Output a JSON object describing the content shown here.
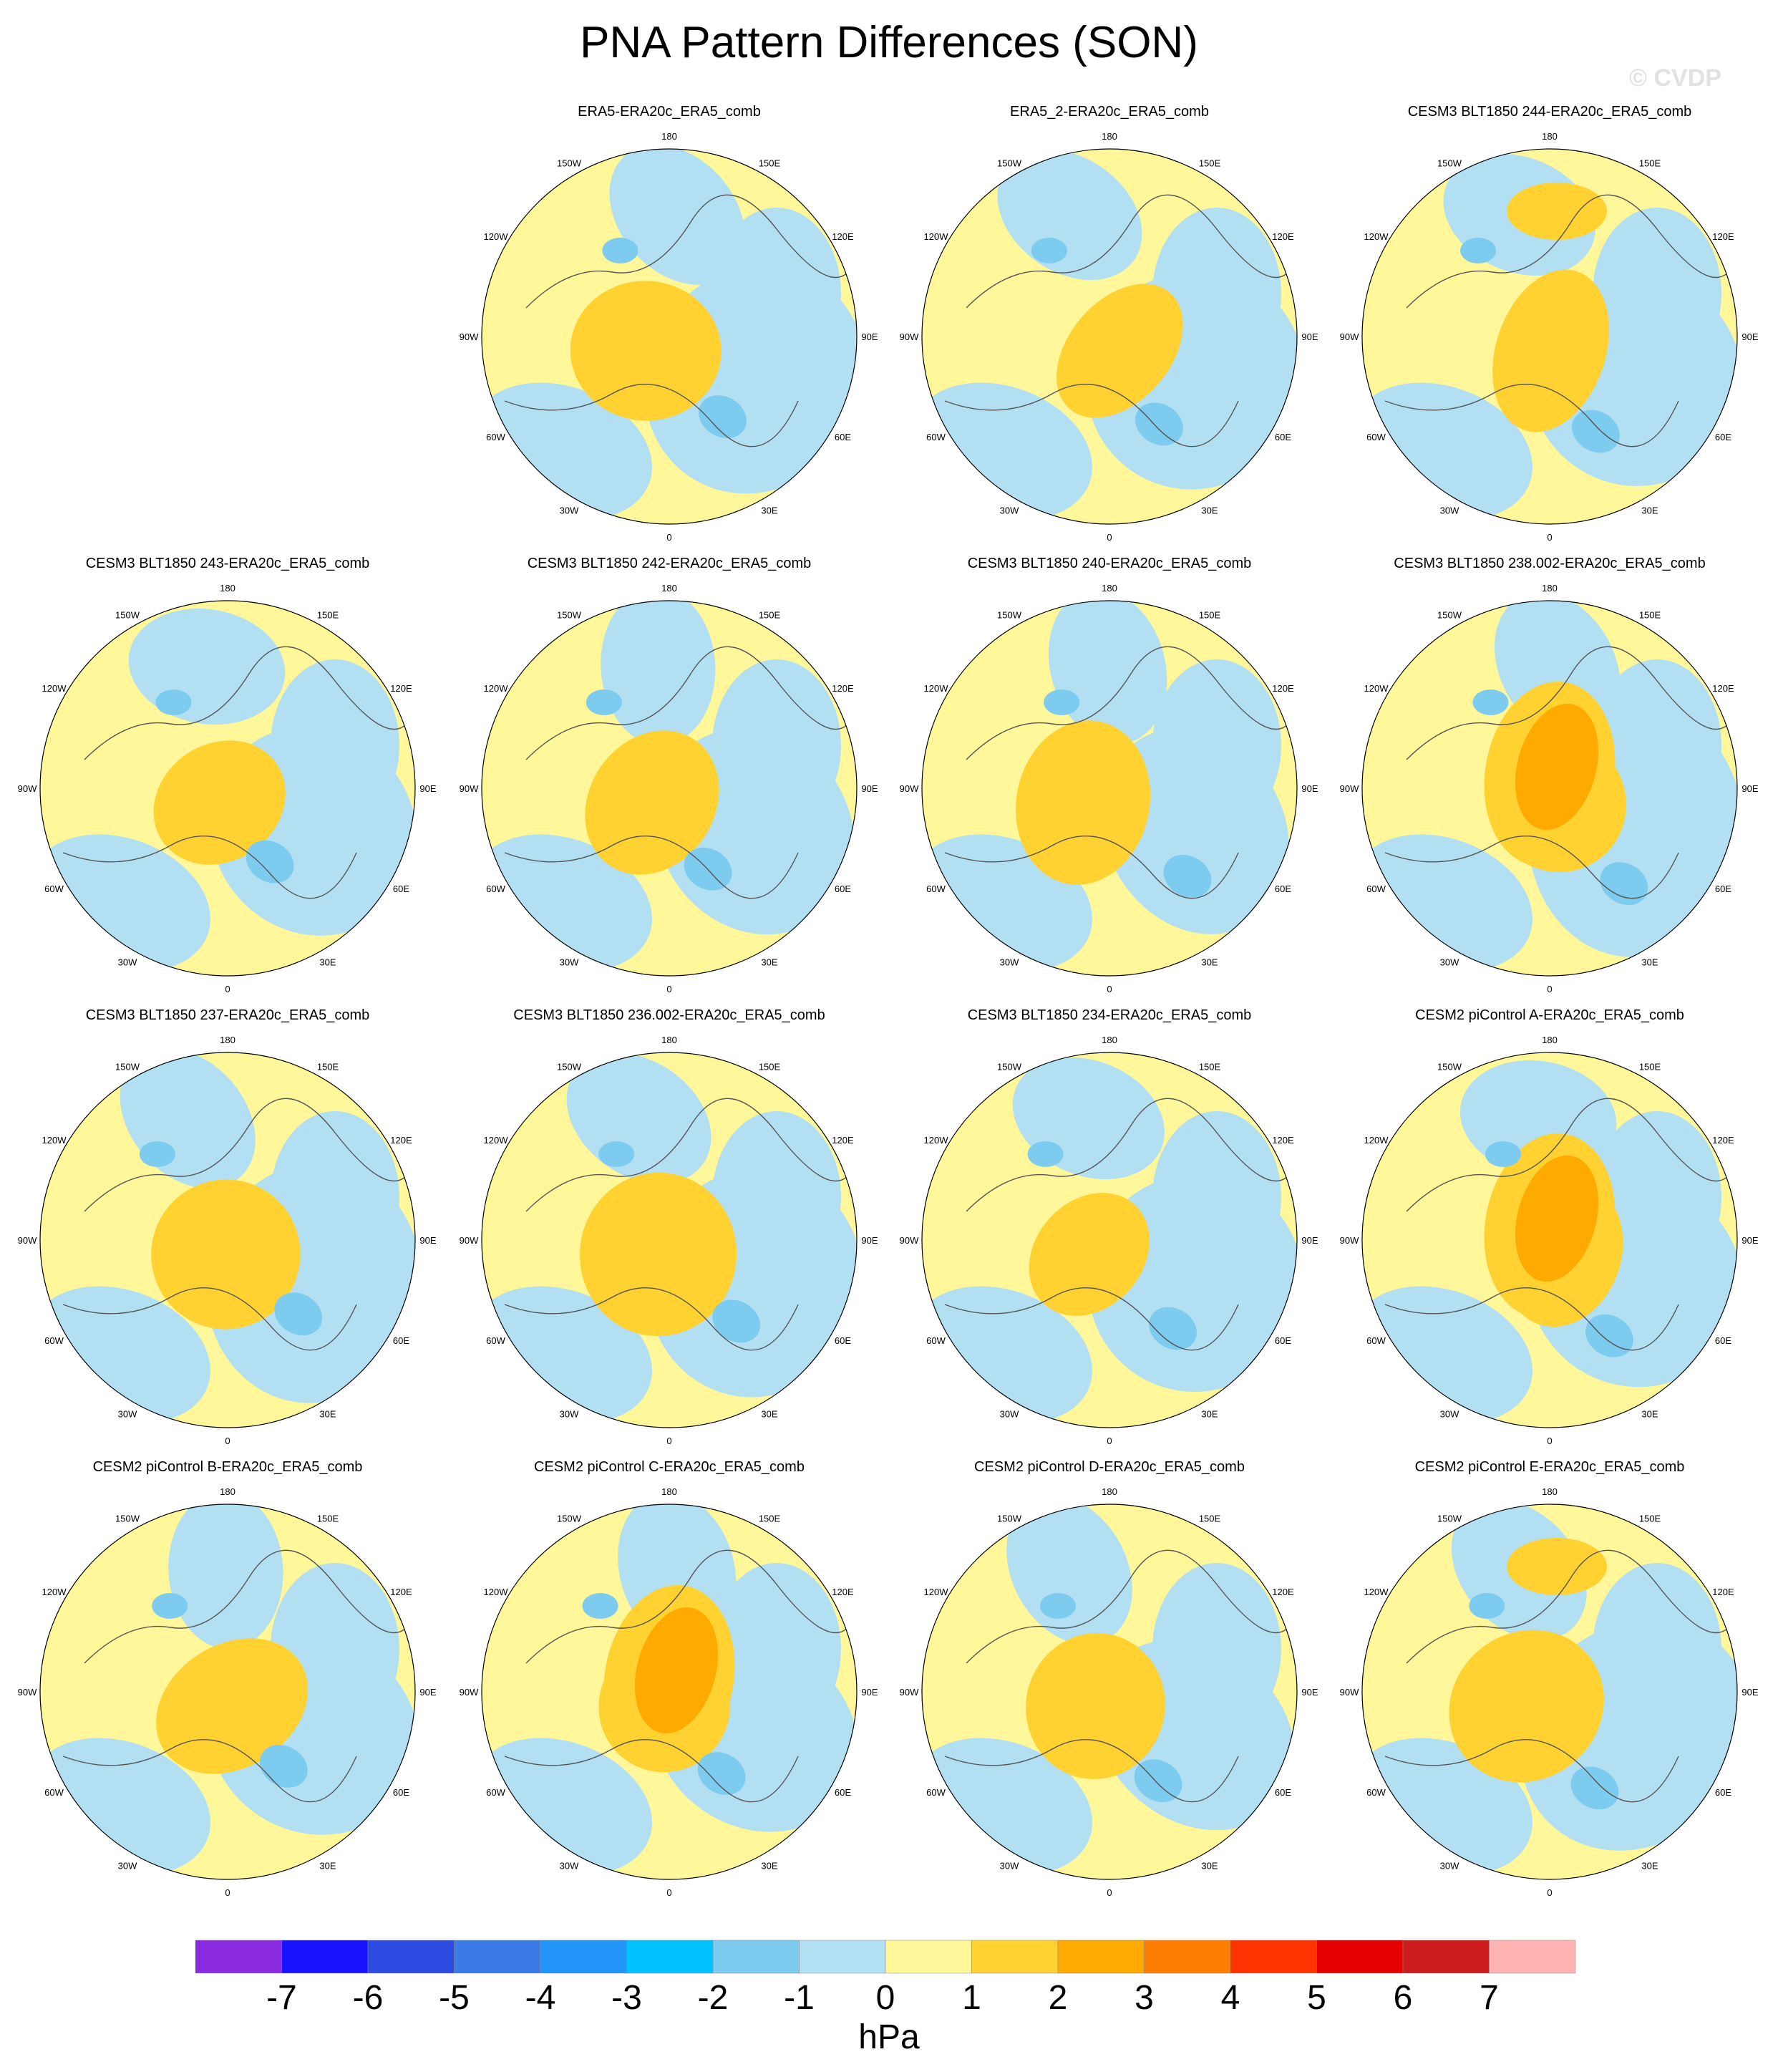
{
  "title": "PNA Pattern Differences (SON)",
  "watermark": "© CVDP",
  "panels": [
    {
      "title": "ERA5-ERA20c_ERA5_comb"
    },
    {
      "title": "ERA5_2-ERA20c_ERA5_comb"
    },
    {
      "title": "CESM3 BLT1850 244-ERA20c_ERA5_comb"
    },
    {
      "title": "CESM3 BLT1850 243-ERA20c_ERA5_comb"
    },
    {
      "title": "CESM3 BLT1850 242-ERA20c_ERA5_comb"
    },
    {
      "title": "CESM3 BLT1850 240-ERA20c_ERA5_comb"
    },
    {
      "title": "CESM3 BLT1850 238.002-ERA20c_ERA5_comb"
    },
    {
      "title": "CESM3 BLT1850 237-ERA20c_ERA5_comb"
    },
    {
      "title": "CESM3 BLT1850 236.002-ERA20c_ERA5_comb"
    },
    {
      "title": "CESM3 BLT1850 234-ERA20c_ERA5_comb"
    },
    {
      "title": "CESM2 piControl A-ERA20c_ERA5_comb"
    },
    {
      "title": "CESM2 piControl B-ERA20c_ERA5_comb"
    },
    {
      "title": "CESM2 piControl C-ERA20c_ERA5_comb"
    },
    {
      "title": "CESM2 piControl D-ERA20c_ERA5_comb"
    },
    {
      "title": "CESM2 piControl E-ERA20c_ERA5_comb"
    }
  ],
  "lon_labels": [
    "180",
    "150E",
    "120E",
    "90E",
    "60E",
    "30E",
    "0",
    "30W",
    "60W",
    "90W",
    "120W",
    "150W"
  ],
  "colorbar": {
    "unit": "hPa",
    "ticks": [
      "-7",
      "-6",
      "-5",
      "-4",
      "-3",
      "-2",
      "-1",
      "0",
      "1",
      "2",
      "3",
      "4",
      "5",
      "6",
      "7"
    ],
    "colors": [
      "#8a2be2",
      "#1a12ff",
      "#2d4be0",
      "#3a7be8",
      "#2196f8",
      "#00c2ff",
      "#7ecbf0",
      "#b3dff2",
      "#fff799",
      "#ffd232",
      "#ffaa00",
      "#ff7d00",
      "#ff3300",
      "#e60000",
      "#cc1c1c",
      "#ffb3b3"
    ]
  }
}
